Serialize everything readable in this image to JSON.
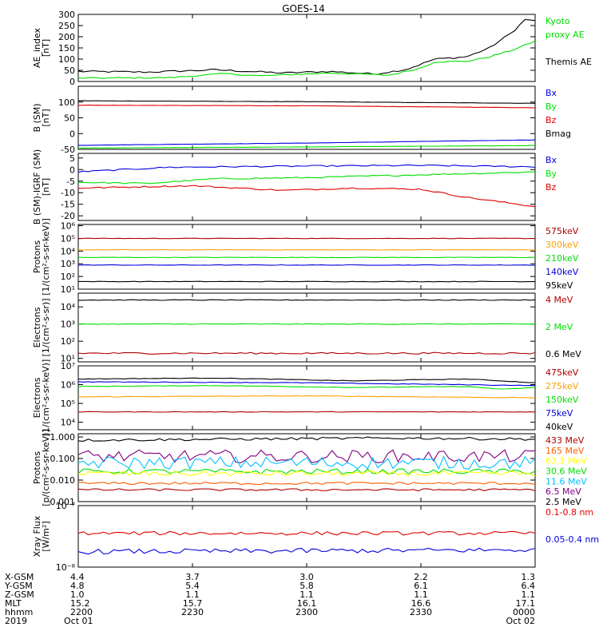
{
  "title": "GOES-14",
  "x_ticks": [
    "2200",
    "2230",
    "2300",
    "2330",
    "0000"
  ],
  "footer": {
    "rows": [
      {
        "label": "X-GSM",
        "values": [
          "4.4",
          "3.7",
          "3.0",
          "2.2",
          "1.3"
        ]
      },
      {
        "label": "Y-GSM",
        "values": [
          "4.8",
          "5.4",
          "5.8",
          "6.1",
          "6.4"
        ]
      },
      {
        "label": "Z-GSM",
        "values": [
          "1.0",
          "1.1",
          "1.1",
          "1.1",
          "1.1"
        ]
      },
      {
        "label": "MLT",
        "values": [
          "15.2",
          "15.7",
          "16.1",
          "16.6",
          "17.1"
        ]
      },
      {
        "label": "hhmm",
        "values": [
          "2200",
          "2230",
          "2300",
          "2330",
          "0000"
        ]
      }
    ],
    "date_row": {
      "label": "2019",
      "start": "Oct 01",
      "end": "Oct 02"
    }
  },
  "chart_data": [
    {
      "type": "line",
      "ylabel": [
        "AE_index",
        "[nT]"
      ],
      "ylim": [
        0,
        300
      ],
      "yticks": [
        "300",
        "250",
        "200",
        "150",
        "100",
        "50",
        "0"
      ],
      "ytick_values": [
        300,
        250,
        200,
        150,
        100,
        50,
        0
      ],
      "scale": "linear",
      "series": [
        {
          "name": "Themis AE",
          "color": "#000000",
          "anchors": [
            [
              0,
              45
            ],
            [
              0.15,
              42
            ],
            [
              0.3,
              52
            ],
            [
              0.45,
              38
            ],
            [
              0.55,
              45
            ],
            [
              0.65,
              33
            ],
            [
              0.72,
              55
            ],
            [
              0.78,
              100
            ],
            [
              0.85,
              110
            ],
            [
              0.9,
              150
            ],
            [
              0.95,
              220
            ],
            [
              0.98,
              280
            ],
            [
              1,
              270
            ]
          ],
          "noise": 4
        },
        {
          "name": "Kyoto proxy AE",
          "color": "#00e000",
          "anchors": [
            [
              0,
              15
            ],
            [
              0.2,
              17
            ],
            [
              0.32,
              35
            ],
            [
              0.4,
              25
            ],
            [
              0.55,
              38
            ],
            [
              0.68,
              28
            ],
            [
              0.75,
              60
            ],
            [
              0.78,
              88
            ],
            [
              0.85,
              90
            ],
            [
              0.9,
              110
            ],
            [
              0.95,
              140
            ],
            [
              1,
              180
            ]
          ],
          "noise": 3
        }
      ],
      "legend": [
        {
          "text": "Kyoto",
          "color": "#00e000"
        },
        {
          "text": "proxy AE",
          "color": "#00e000"
        },
        {
          "text": "",
          "color": "#000000"
        },
        {
          "text": "Themis AE",
          "color": "#000000"
        }
      ]
    },
    {
      "type": "line",
      "ylabel": [
        "B (SM)",
        "[nT]"
      ],
      "ylim": [
        -50,
        150
      ],
      "yticks": [
        "100",
        "50",
        "0",
        "-50"
      ],
      "ytick_values": [
        100,
        50,
        0,
        -50
      ],
      "scale": "linear",
      "series": [
        {
          "name": "Bmag",
          "color": "#000000",
          "anchors": [
            [
              0,
              104
            ],
            [
              0.5,
              101
            ],
            [
              1,
              96
            ]
          ],
          "noise": 0.4
        },
        {
          "name": "Bz",
          "color": "#e00000",
          "anchors": [
            [
              0,
              90
            ],
            [
              0.5,
              88
            ],
            [
              1,
              82
            ]
          ],
          "noise": 0.4
        },
        {
          "name": "Bx",
          "color": "#0000e0",
          "anchors": [
            [
              0,
              -37
            ],
            [
              0.5,
              -30
            ],
            [
              1,
              -20
            ]
          ],
          "noise": 0.4
        },
        {
          "name": "By",
          "color": "#00e000",
          "anchors": [
            [
              0,
              -46
            ],
            [
              0.5,
              -42
            ],
            [
              1,
              -38
            ]
          ],
          "noise": 0.4
        }
      ],
      "legend": [
        {
          "text": "Bx",
          "color": "#0000e0"
        },
        {
          "text": "By",
          "color": "#00e000"
        },
        {
          "text": "Bz",
          "color": "#e00000"
        },
        {
          "text": "Bmag",
          "color": "#000000"
        }
      ]
    },
    {
      "type": "line",
      "ylabel": [
        "B (SM)-IGRF (SM)",
        "[nT]"
      ],
      "ylim": [
        -22,
        7
      ],
      "yticks": [
        "5",
        "0",
        "-5",
        "-10",
        "-15",
        "-20"
      ],
      "ytick_values": [
        5,
        0,
        -5,
        -10,
        -15,
        -20
      ],
      "scale": "linear",
      "series": [
        {
          "name": "Bx",
          "color": "#0000e0",
          "anchors": [
            [
              0,
              -1
            ],
            [
              0.2,
              1
            ],
            [
              0.5,
              1.5
            ],
            [
              0.75,
              1.8
            ],
            [
              1,
              1.2
            ]
          ],
          "noise": 0.3
        },
        {
          "name": "By",
          "color": "#00e000",
          "anchors": [
            [
              0,
              -5.5
            ],
            [
              0.15,
              -6
            ],
            [
              0.3,
              -4
            ],
            [
              0.5,
              -3.5
            ],
            [
              0.7,
              -2.5
            ],
            [
              1,
              -1
            ]
          ],
          "noise": 0.3
        },
        {
          "name": "Bz",
          "color": "#e00000",
          "anchors": [
            [
              0,
              -8
            ],
            [
              0.25,
              -7
            ],
            [
              0.45,
              -9
            ],
            [
              0.6,
              -8
            ],
            [
              0.75,
              -8.5
            ],
            [
              0.85,
              -12
            ],
            [
              1,
              -16
            ]
          ],
          "noise": 0.3
        }
      ],
      "legend": [
        {
          "text": "Bx",
          "color": "#0000e0"
        },
        {
          "text": "By",
          "color": "#00e000"
        },
        {
          "text": "Bz",
          "color": "#e00000"
        }
      ]
    },
    {
      "type": "line",
      "ylabel": [
        "Protons",
        "[1/(cm²-s-sr-keV)]"
      ],
      "ylim": [
        1,
        6.1
      ],
      "yticks": [
        "10⁶",
        "10⁵",
        "10⁴",
        "10³",
        "10²",
        "10¹"
      ],
      "ytick_values": [
        6,
        5,
        4,
        3,
        2,
        1
      ],
      "scale": "log",
      "series": [
        {
          "name": "575keV",
          "color": "#b00000",
          "anchors": [
            [
              0,
              5.0
            ],
            [
              1,
              5.0
            ]
          ],
          "noise": 0.02
        },
        {
          "name": "300keV",
          "color": "#ffa000",
          "anchors": [
            [
              0,
              4.1
            ],
            [
              1,
              4.1
            ]
          ],
          "noise": 0.02
        },
        {
          "name": "210keV",
          "color": "#00e000",
          "anchors": [
            [
              0,
              3.5
            ],
            [
              1,
              3.5
            ]
          ],
          "noise": 0.02
        },
        {
          "name": "140keV",
          "color": "#0000e0",
          "anchors": [
            [
              0,
              2.9
            ],
            [
              1,
              2.9
            ]
          ],
          "noise": 0.02
        },
        {
          "name": "95keV",
          "color": "#000000",
          "anchors": [
            [
              0,
              1.6
            ],
            [
              1,
              1.6
            ]
          ],
          "noise": 0.02
        }
      ],
      "legend": [
        {
          "text": "575keV",
          "color": "#b00000"
        },
        {
          "text": "300keV",
          "color": "#ffa000"
        },
        {
          "text": "210keV",
          "color": "#00e000"
        },
        {
          "text": "140keV",
          "color": "#0000e0"
        },
        {
          "text": "95keV",
          "color": "#000000"
        }
      ]
    },
    {
      "type": "line",
      "ylabel": [
        "Electrons",
        "[1/(cm²-s-sr)]"
      ],
      "ylim": [
        0.8,
        4.8
      ],
      "yticks": [
        "10⁴",
        "10³",
        "10²",
        "10¹"
      ],
      "ytick_values": [
        4,
        3,
        2,
        1
      ],
      "scale": "log",
      "series": [
        {
          "name": "0.6 MeV",
          "color": "#000000",
          "anchors": [
            [
              0,
              4.4
            ],
            [
              1,
              4.4
            ]
          ],
          "noise": 0.02
        },
        {
          "name": "2 MeV",
          "color": "#00e000",
          "anchors": [
            [
              0,
              3.0
            ],
            [
              1,
              3.0
            ]
          ],
          "noise": 0.02
        },
        {
          "name": "4 MeV",
          "color": "#b00000",
          "anchors": [
            [
              0,
              1.3
            ],
            [
              1,
              1.3
            ]
          ],
          "noise": 0.05
        }
      ],
      "legend": [
        {
          "text": "4 MeV",
          "color": "#b00000"
        },
        {
          "text": "",
          "color": "#000000"
        },
        {
          "text": "2 MeV",
          "color": "#00e000"
        },
        {
          "text": "",
          "color": "#000000"
        },
        {
          "text": "0.6 MeV",
          "color": "#000000"
        }
      ]
    },
    {
      "type": "line",
      "ylabel": [
        "Electrons",
        "[1/(cm²-s-sr-keV)]"
      ],
      "ylim": [
        3.6,
        7
      ],
      "yticks": [
        "10⁷",
        "10⁶",
        "10⁵",
        "10⁴"
      ],
      "ytick_values": [
        7,
        6,
        5,
        4
      ],
      "scale": "log",
      "series": [
        {
          "name": "40keV",
          "color": "#000000",
          "anchors": [
            [
              0,
              6.3
            ],
            [
              0.3,
              6.35
            ],
            [
              0.6,
              6.2
            ],
            [
              0.85,
              6.3
            ],
            [
              1,
              6.1
            ]
          ],
          "noise": 0.015
        },
        {
          "name": "75keV",
          "color": "#0000e0",
          "anchors": [
            [
              0,
              6.15
            ],
            [
              0.5,
              6.1
            ],
            [
              1,
              5.95
            ]
          ],
          "noise": 0.015
        },
        {
          "name": "150keV",
          "color": "#00e000",
          "anchors": [
            [
              0,
              5.9
            ],
            [
              0.3,
              5.95
            ],
            [
              0.6,
              5.85
            ],
            [
              0.85,
              5.9
            ],
            [
              0.93,
              5.75
            ],
            [
              1,
              5.85
            ]
          ],
          "noise": 0.015
        },
        {
          "name": "275keV",
          "color": "#ffa000",
          "anchors": [
            [
              0,
              5.35
            ],
            [
              0.5,
              5.4
            ],
            [
              1,
              5.3
            ]
          ],
          "noise": 0.015
        },
        {
          "name": "475keV",
          "color": "#b00000",
          "anchors": [
            [
              0,
              4.55
            ],
            [
              1,
              4.55
            ]
          ],
          "noise": 0.015
        }
      ],
      "legend": [
        {
          "text": "475keV",
          "color": "#b00000"
        },
        {
          "text": "275keV",
          "color": "#ffa000"
        },
        {
          "text": "150keV",
          "color": "#00e000"
        },
        {
          "text": "75keV",
          "color": "#0000e0"
        },
        {
          "text": "40keV",
          "color": "#000000"
        }
      ]
    },
    {
      "type": "line",
      "ylabel": [
        "Protons",
        "[p/(cm²-s-sr-keV)]"
      ],
      "ylim": [
        -3,
        0.15
      ],
      "yticks": [
        "1.000",
        "0.100",
        "0.010",
        "0.001"
      ],
      "ytick_values": [
        0,
        -1,
        -2,
        -3
      ],
      "scale": "log",
      "series": [
        {
          "name": "2.5 MeV",
          "color": "#000000",
          "anchors": [
            [
              0,
              -0.15
            ],
            [
              0.7,
              -0.05
            ],
            [
              1,
              -0.1
            ]
          ],
          "noise": 0.06
        },
        {
          "name": "6.5 MeV",
          "color": "#800080",
          "anchors": [
            [
              0,
              -0.9
            ],
            [
              1,
              -0.9
            ]
          ],
          "noise": 0.3
        },
        {
          "name": "11.6 MeV",
          "color": "#00c0ff",
          "anchors": [
            [
              0,
              -1.2
            ],
            [
              1,
              -1.2
            ]
          ],
          "noise": 0.3
        },
        {
          "name": "30.6 MeV",
          "color": "#00e000",
          "anchors": [
            [
              0,
              -1.6
            ],
            [
              1,
              -1.6
            ]
          ],
          "noise": 0.12
        },
        {
          "name": "63.1 MeV",
          "color": "#ffff00",
          "anchors": [
            [
              0,
              -1.7
            ],
            [
              1,
              -1.7
            ]
          ],
          "noise": 0.12
        },
        {
          "name": "165 MeV",
          "color": "#ff6000",
          "anchors": [
            [
              0,
              -2.15
            ],
            [
              1,
              -2.15
            ]
          ],
          "noise": 0.06
        },
        {
          "name": "433 MeV",
          "color": "#b00000",
          "anchors": [
            [
              0,
              -2.45
            ],
            [
              1,
              -2.45
            ]
          ],
          "noise": 0.05
        }
      ],
      "legend": [
        {
          "text": "433 MeV",
          "color": "#b00000"
        },
        {
          "text": "165 MeV",
          "color": "#ff6000"
        },
        {
          "text": "63.1 MeV",
          "color": "#ffff00"
        },
        {
          "text": "30.6 MeV",
          "color": "#00e000"
        },
        {
          "text": "11.6 MeV",
          "color": "#00c0ff"
        },
        {
          "text": "6.5 MeV",
          "color": "#800080"
        },
        {
          "text": "2.5 MeV",
          "color": "#000000"
        }
      ]
    },
    {
      "type": "line",
      "ylabel": [
        "Xray Flux",
        "[W/m²]"
      ],
      "ylim": [
        -8,
        -7
      ],
      "yticks": [
        "10⁻⁷",
        "10⁻⁸"
      ],
      "ytick_values": [
        -7,
        -8
      ],
      "scale": "log",
      "series": [
        {
          "name": "0.1-0.8 nm",
          "color": "#e00000",
          "anchors": [
            [
              0,
              -7.45
            ],
            [
              1,
              -7.45
            ]
          ],
          "noise": 0.03
        },
        {
          "name": "0.05-0.4 nm",
          "color": "#0000e0",
          "anchors": [
            [
              0,
              -7.75
            ],
            [
              1,
              -7.72
            ]
          ],
          "noise": 0.04
        }
      ],
      "legend": [
        {
          "text": "0.1-0.8 nm",
          "color": "#e00000"
        },
        {
          "text": "",
          "color": "#000000"
        },
        {
          "text": "0.05-0.4 nm",
          "color": "#0000e0"
        }
      ]
    }
  ]
}
